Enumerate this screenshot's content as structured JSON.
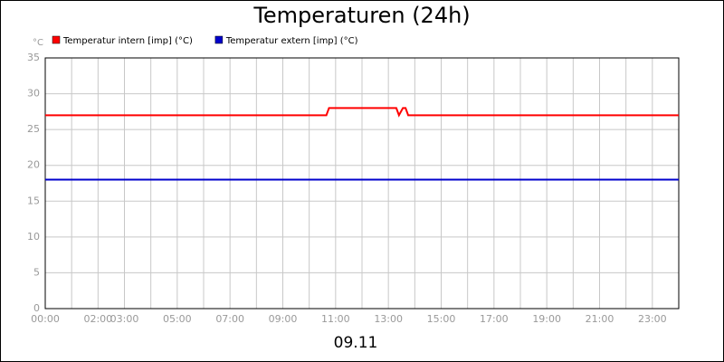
{
  "chart_data": {
    "type": "line",
    "title": "Temperaturen (24h)",
    "y_unit": "°C",
    "xlabel": "09.11",
    "xlim": [
      0,
      24
    ],
    "ylim": [
      0,
      35
    ],
    "yticks": [
      0,
      5,
      10,
      15,
      20,
      25,
      30,
      35
    ],
    "xticks": [
      {
        "value": 0,
        "label": "00:00"
      },
      {
        "value": 1,
        "label": null
      },
      {
        "value": 2,
        "label": "02:00"
      },
      {
        "value": 3,
        "label": "03:00"
      },
      {
        "value": 4,
        "label": null
      },
      {
        "value": 5,
        "label": "05:00"
      },
      {
        "value": 6,
        "label": null
      },
      {
        "value": 7,
        "label": "07:00"
      },
      {
        "value": 8,
        "label": null
      },
      {
        "value": 9,
        "label": "09:00"
      },
      {
        "value": 10,
        "label": null
      },
      {
        "value": 11,
        "label": "11:00"
      },
      {
        "value": 12,
        "label": null
      },
      {
        "value": 13,
        "label": "13:00"
      },
      {
        "value": 14,
        "label": null
      },
      {
        "value": 15,
        "label": "15:00"
      },
      {
        "value": 16,
        "label": null
      },
      {
        "value": 17,
        "label": "17:00"
      },
      {
        "value": 18,
        "label": null
      },
      {
        "value": 19,
        "label": "19:00"
      },
      {
        "value": 20,
        "label": null
      },
      {
        "value": 21,
        "label": "21:00"
      },
      {
        "value": 22,
        "label": null
      },
      {
        "value": 23,
        "label": "23:00"
      }
    ],
    "grid": true,
    "series": [
      {
        "name": "Temperatur intern [imp] (°C)",
        "color": "#ff0000",
        "x": [
          0,
          10.65,
          10.75,
          13.3,
          13.4,
          13.55,
          13.65,
          13.75,
          24
        ],
        "values": [
          27,
          27,
          28,
          28,
          27,
          28,
          28,
          27,
          27
        ]
      },
      {
        "name": "Temperatur extern [imp] (°C)",
        "color": "#0000cc",
        "x": [
          0,
          24
        ],
        "values": [
          18,
          18
        ]
      }
    ]
  }
}
